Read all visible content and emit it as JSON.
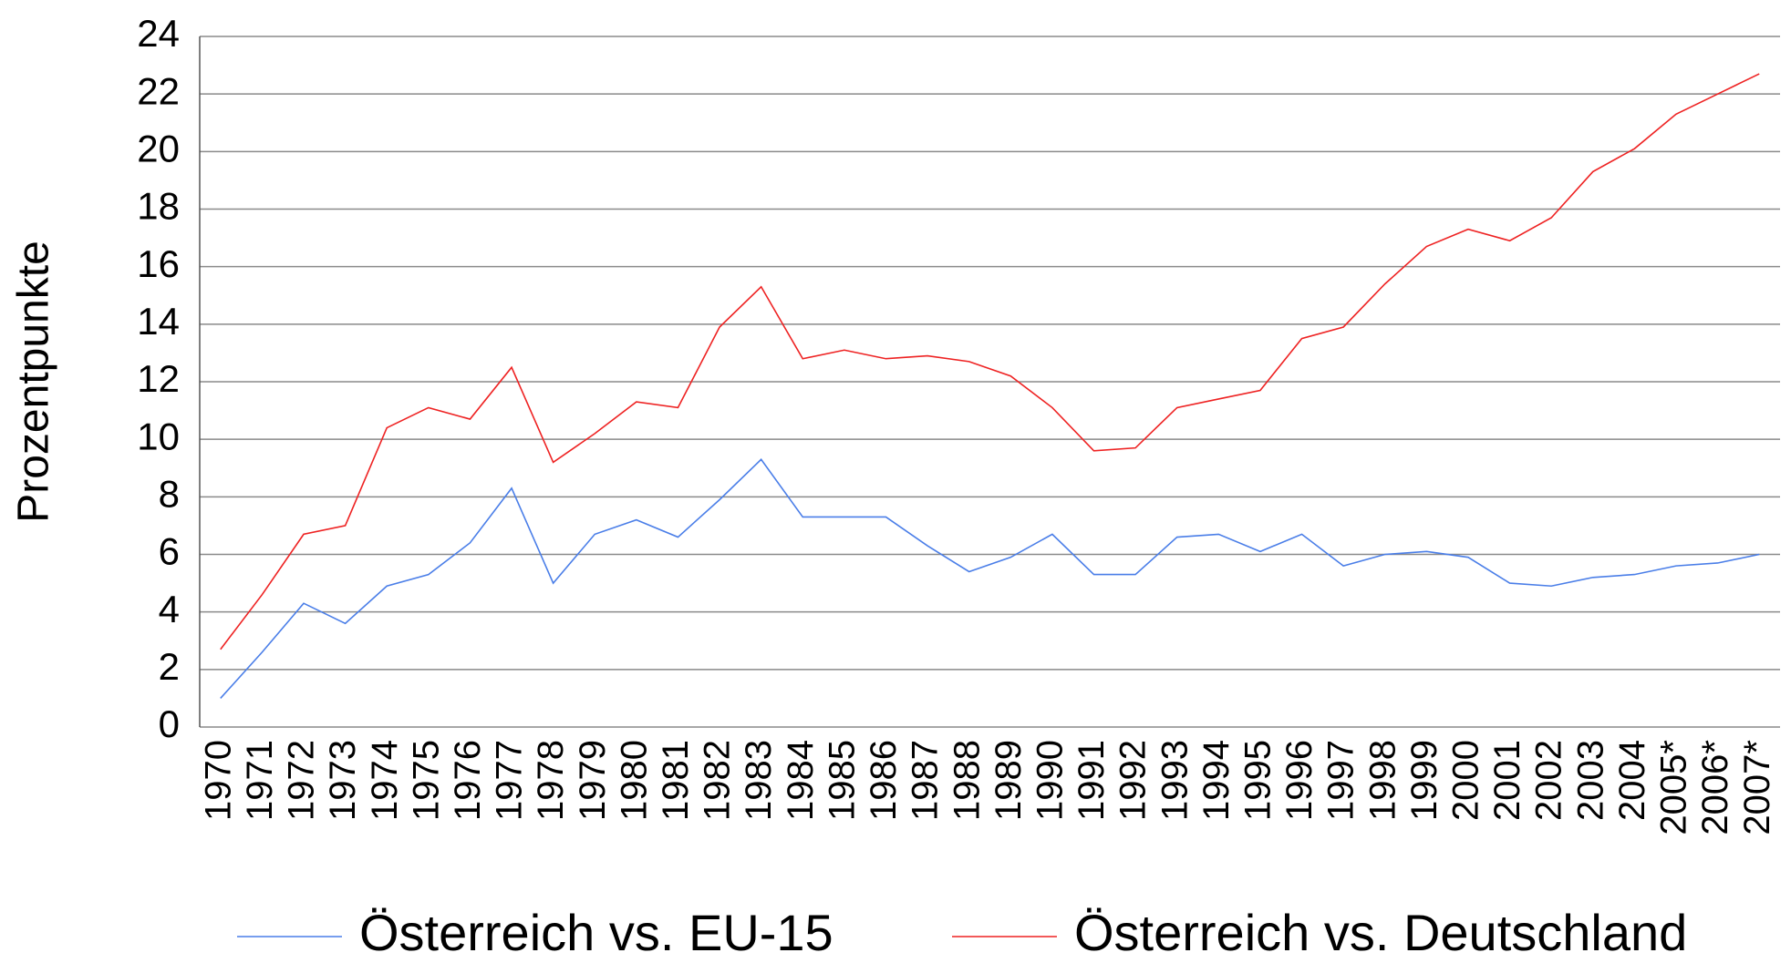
{
  "chart_data": {
    "type": "line",
    "ylabel": "Prozentpunkte",
    "categories": [
      "1970",
      "1971",
      "1972",
      "1973",
      "1974",
      "1975",
      "1976",
      "1977",
      "1978",
      "1979",
      "1980",
      "1981",
      "1982",
      "1983",
      "1984",
      "1985",
      "1986",
      "1987",
      "1988",
      "1989",
      "1990",
      "1991",
      "1992",
      "1993",
      "1994",
      "1995",
      "1996",
      "1997",
      "1998",
      "1999",
      "2000",
      "2001",
      "2002",
      "2003",
      "2004",
      "2005*",
      "2006*",
      "2007*"
    ],
    "series": [
      {
        "name": "Österreich vs. EU-15",
        "color": "#4a7ee8",
        "values": [
          1.0,
          2.6,
          4.3,
          3.6,
          4.9,
          5.3,
          6.4,
          8.3,
          5.0,
          6.7,
          7.2,
          6.6,
          7.9,
          9.3,
          7.3,
          7.3,
          7.3,
          6.3,
          5.4,
          5.9,
          6.7,
          5.3,
          5.3,
          6.6,
          6.7,
          6.1,
          6.7,
          5.6,
          6.0,
          6.1,
          5.9,
          5.0,
          4.9,
          5.2,
          5.3,
          5.6,
          5.7,
          6.0
        ]
      },
      {
        "name": "Österreich vs. Deutschland",
        "color": "#ee2222",
        "values": [
          2.7,
          4.6,
          6.7,
          7.0,
          10.4,
          11.1,
          10.7,
          12.5,
          9.2,
          10.2,
          11.3,
          11.1,
          13.9,
          15.3,
          12.8,
          13.1,
          12.8,
          12.9,
          12.7,
          12.2,
          11.1,
          9.6,
          9.7,
          11.1,
          11.4,
          11.7,
          13.5,
          13.9,
          15.4,
          16.7,
          17.3,
          16.9,
          17.7,
          19.3,
          20.1,
          21.3,
          22.0,
          22.7
        ]
      }
    ],
    "ylim": [
      0,
      24
    ],
    "yticks": [
      0,
      2,
      4,
      6,
      8,
      10,
      12,
      14,
      16,
      18,
      20,
      22,
      24
    ],
    "grid": true,
    "legend": "bottom"
  }
}
